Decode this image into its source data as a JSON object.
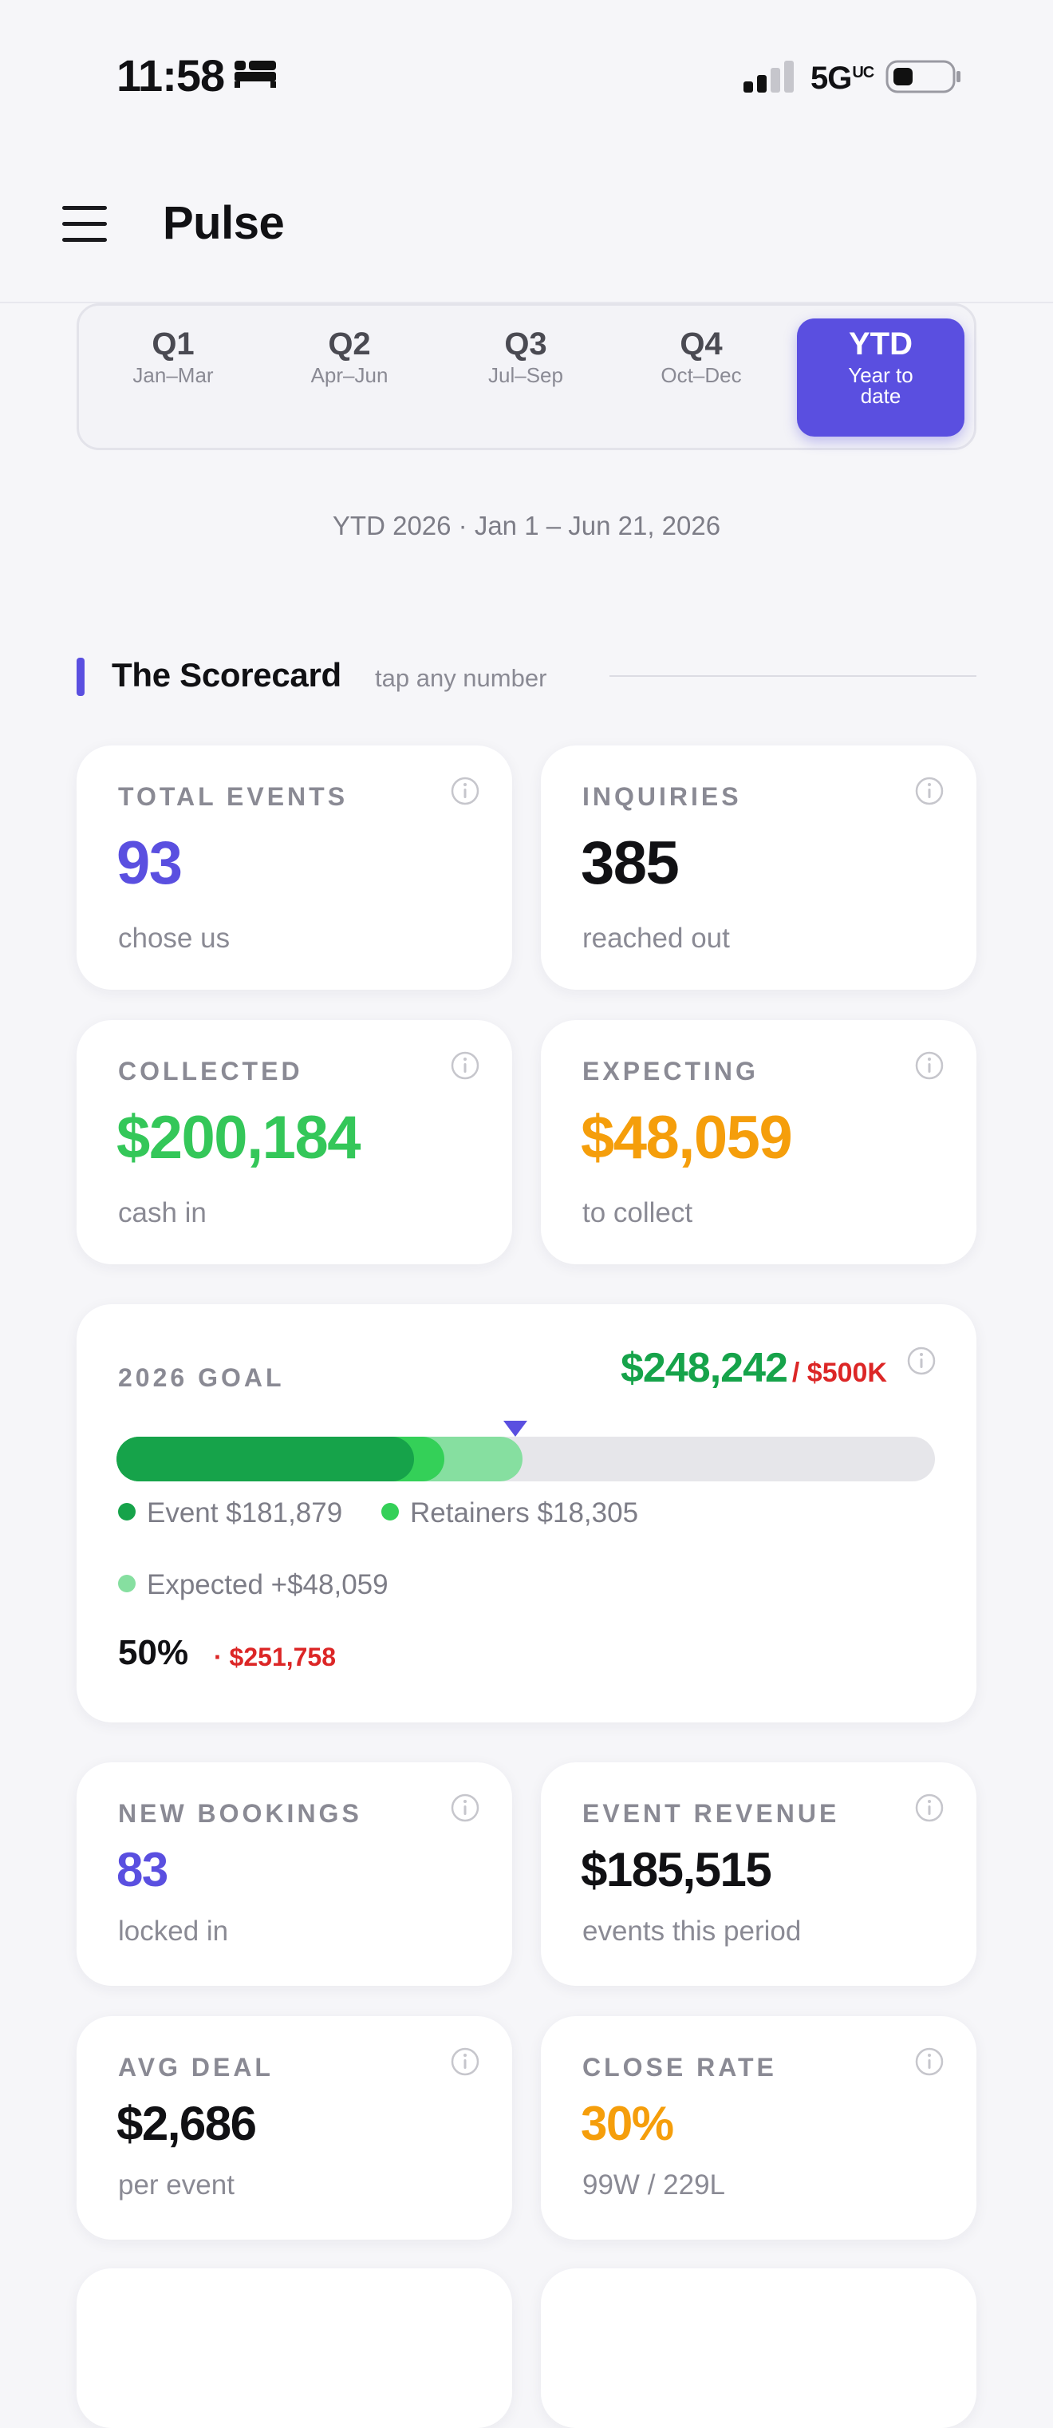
{
  "status_bar": {
    "time": "11:58",
    "network": "5G",
    "network_suffix": "UC",
    "icons": [
      "bed-icon",
      "signal-icon",
      "battery-icon"
    ]
  },
  "header": {
    "title": "Pulse",
    "menu_icon": "hamburger-menu-icon"
  },
  "period_tabs": [
    {
      "label": "Q1",
      "sub": "Jan–Mar"
    },
    {
      "label": "Q2",
      "sub": "Apr–Jun"
    },
    {
      "label": "Q3",
      "sub": "Jul–Sep"
    },
    {
      "label": "Q4",
      "sub": "Oct–Dec"
    },
    {
      "label": "YTD",
      "sub": "Year to date",
      "active": true
    }
  ],
  "period_label": "YTD 2026 · Jan 1 – Jun 21, 2026",
  "section": {
    "title": "The Scorecard",
    "hint": "tap any number"
  },
  "cards": {
    "total_events": {
      "label": "TOTAL EVENTS",
      "value": "93",
      "caption": "chose us"
    },
    "inquiries": {
      "label": "INQUIRIES",
      "value": "385",
      "caption": "reached out"
    },
    "collected": {
      "label": "COLLECTED",
      "value": "$200,184",
      "caption": "cash in"
    },
    "expecting": {
      "label": "EXPECTING",
      "value": "$48,059",
      "caption": "to collect"
    },
    "new_bookings": {
      "label": "NEW BOOKINGS",
      "value": "83",
      "caption": "locked in"
    },
    "event_revenue": {
      "label": "EVENT REVENUE",
      "value": "$185,515",
      "caption": "events this period"
    },
    "avg_deal": {
      "label": "AVG DEAL",
      "value": "$2,686",
      "caption": "per event"
    },
    "close_rate": {
      "label": "CLOSE RATE",
      "value": "30%",
      "caption": "99W / 229L"
    }
  },
  "goal": {
    "label": "2026 GOAL",
    "amount": "$248,242",
    "target": "/ $500K",
    "event_legend": "Event $181,879",
    "retainers_legend": "Retainers $18,305",
    "expected_legend": "Expected +$48,059",
    "percent": "50%",
    "remaining": "· $251,758",
    "progress": {
      "goal_total": 500000,
      "event": 181879,
      "retainers": 18305,
      "expected": 48059
    },
    "colors": {
      "event": "#16a34a",
      "retainers": "#34d058",
      "expected": "#86dfa0",
      "marker": "#5a4fe0"
    }
  },
  "colors": {
    "accent": "#5a4fe0",
    "positive": "#34c759",
    "warning": "#f59e0b",
    "negative": "#dc2626"
  }
}
